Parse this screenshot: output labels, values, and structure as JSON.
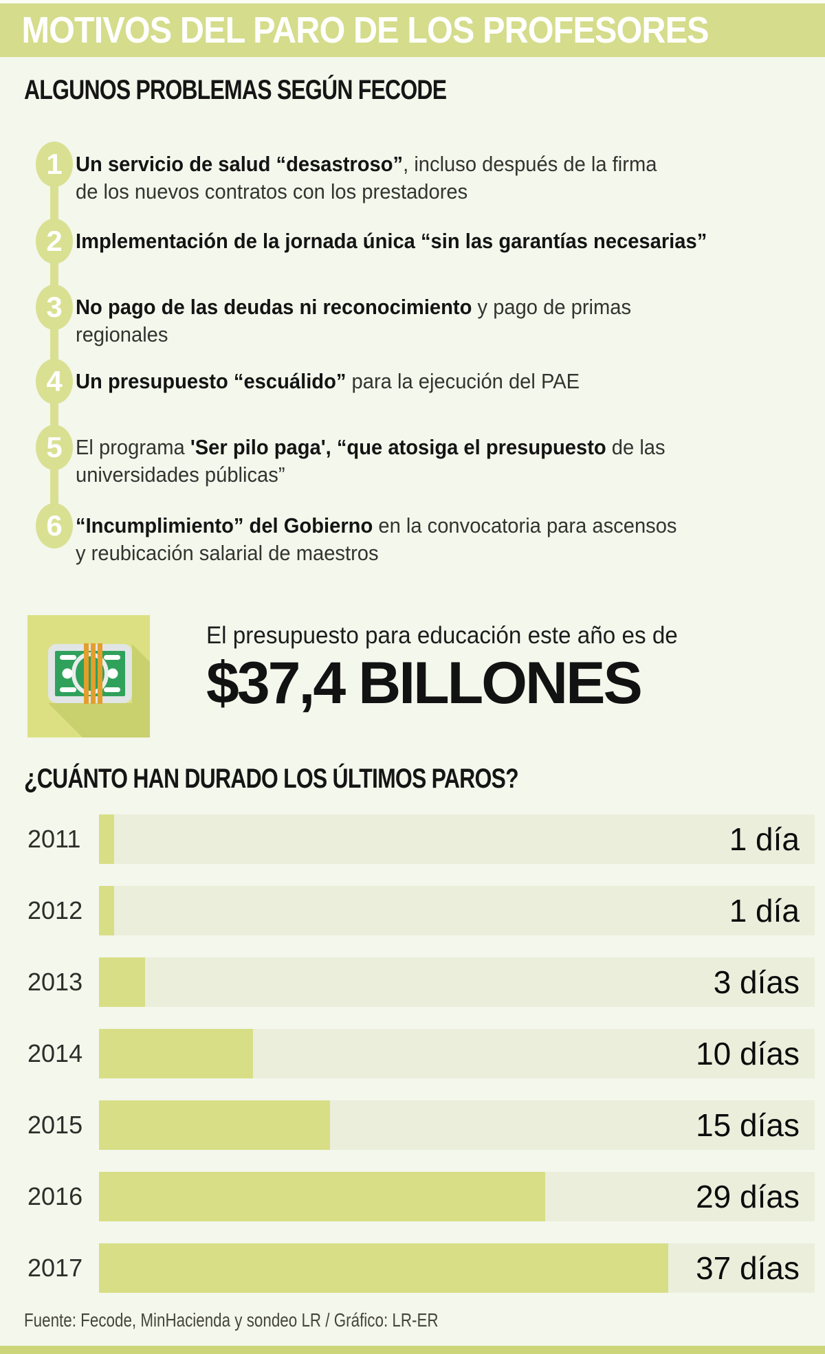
{
  "header": {
    "title": "MOTIVOS DEL PARO DE LOS PROFESORES"
  },
  "colors": {
    "header_band": "#d5dc8b",
    "circle": "#d9e092",
    "tile": "#dce082",
    "bar_fill": "#d8de86",
    "bar_track": "#eaeedb",
    "bottom_band": "#ccd57a",
    "page_bg": "#f4f7ec",
    "bill_green": "#2fa15b",
    "strap_orange": "#e39e2c"
  },
  "problems": {
    "heading": "ALGUNOS PROBLEMAS SEGÚN FECODE",
    "items": [
      {
        "number": "1",
        "lines": [
          [
            {
              "bold": true,
              "t": "Un servicio de salud “desastroso”"
            },
            {
              "bold": false,
              "t": ", incluso después de la firma"
            }
          ],
          [
            {
              "bold": false,
              "t": "de los nuevos contratos con los prestadores"
            }
          ]
        ]
      },
      {
        "number": "2",
        "lines": [
          [
            {
              "bold": true,
              "t": "Implementación de la jornada única “sin las garantías necesarias”"
            }
          ]
        ]
      },
      {
        "number": "3",
        "lines": [
          [
            {
              "bold": true,
              "t": "No pago de las deudas ni reconocimiento"
            },
            {
              "bold": false,
              "t": " y pago de primas"
            }
          ],
          [
            {
              "bold": false,
              "t": "regionales"
            }
          ]
        ]
      },
      {
        "number": "4",
        "lines": [
          [
            {
              "bold": true,
              "t": "Un presupuesto “escuálido”"
            },
            {
              "bold": false,
              "t": " para la ejecución del PAE"
            }
          ]
        ]
      },
      {
        "number": "5",
        "lines": [
          [
            {
              "bold": false,
              "t": "El programa "
            },
            {
              "bold": true,
              "t": "'Ser pilo paga', “que atosiga el presupuesto"
            },
            {
              "bold": false,
              "t": " de las"
            }
          ],
          [
            {
              "bold": false,
              "t": "universidades públicas”"
            }
          ]
        ]
      },
      {
        "number": "6",
        "lines": [
          [
            {
              "bold": true,
              "t": "“Incumplimiento” del Gobierno"
            },
            {
              "bold": false,
              "t": " en la convocatoria para ascensos"
            }
          ],
          [
            {
              "bold": false,
              "t": "y reubicación salarial de maestros"
            }
          ]
        ]
      }
    ]
  },
  "budget": {
    "icon": "money-stack-icon",
    "intro": "El presupuesto para educación este año es de",
    "amount": "$37,4 BILLONES"
  },
  "chart_data": {
    "type": "bar",
    "orientation": "horizontal",
    "title": "¿CUÁNTO HAN DURADO LOS ÚLTIMOS PAROS?",
    "categories": [
      "2011",
      "2012",
      "2013",
      "2014",
      "2015",
      "2016",
      "2017"
    ],
    "values": [
      1,
      1,
      3,
      10,
      15,
      29,
      37
    ],
    "labels": [
      "1 día",
      "1 día",
      "3 días",
      "10 días",
      "15 días",
      "29 días",
      "37 días"
    ],
    "unit": "días",
    "xlim": [
      0,
      46.5
    ],
    "grid": false,
    "legend": "none",
    "value_label_position": "inside-right"
  },
  "footer": {
    "source": "Fuente: Fecode, MinHacienda y sondeo LR / Gráfico: LR-ER"
  }
}
